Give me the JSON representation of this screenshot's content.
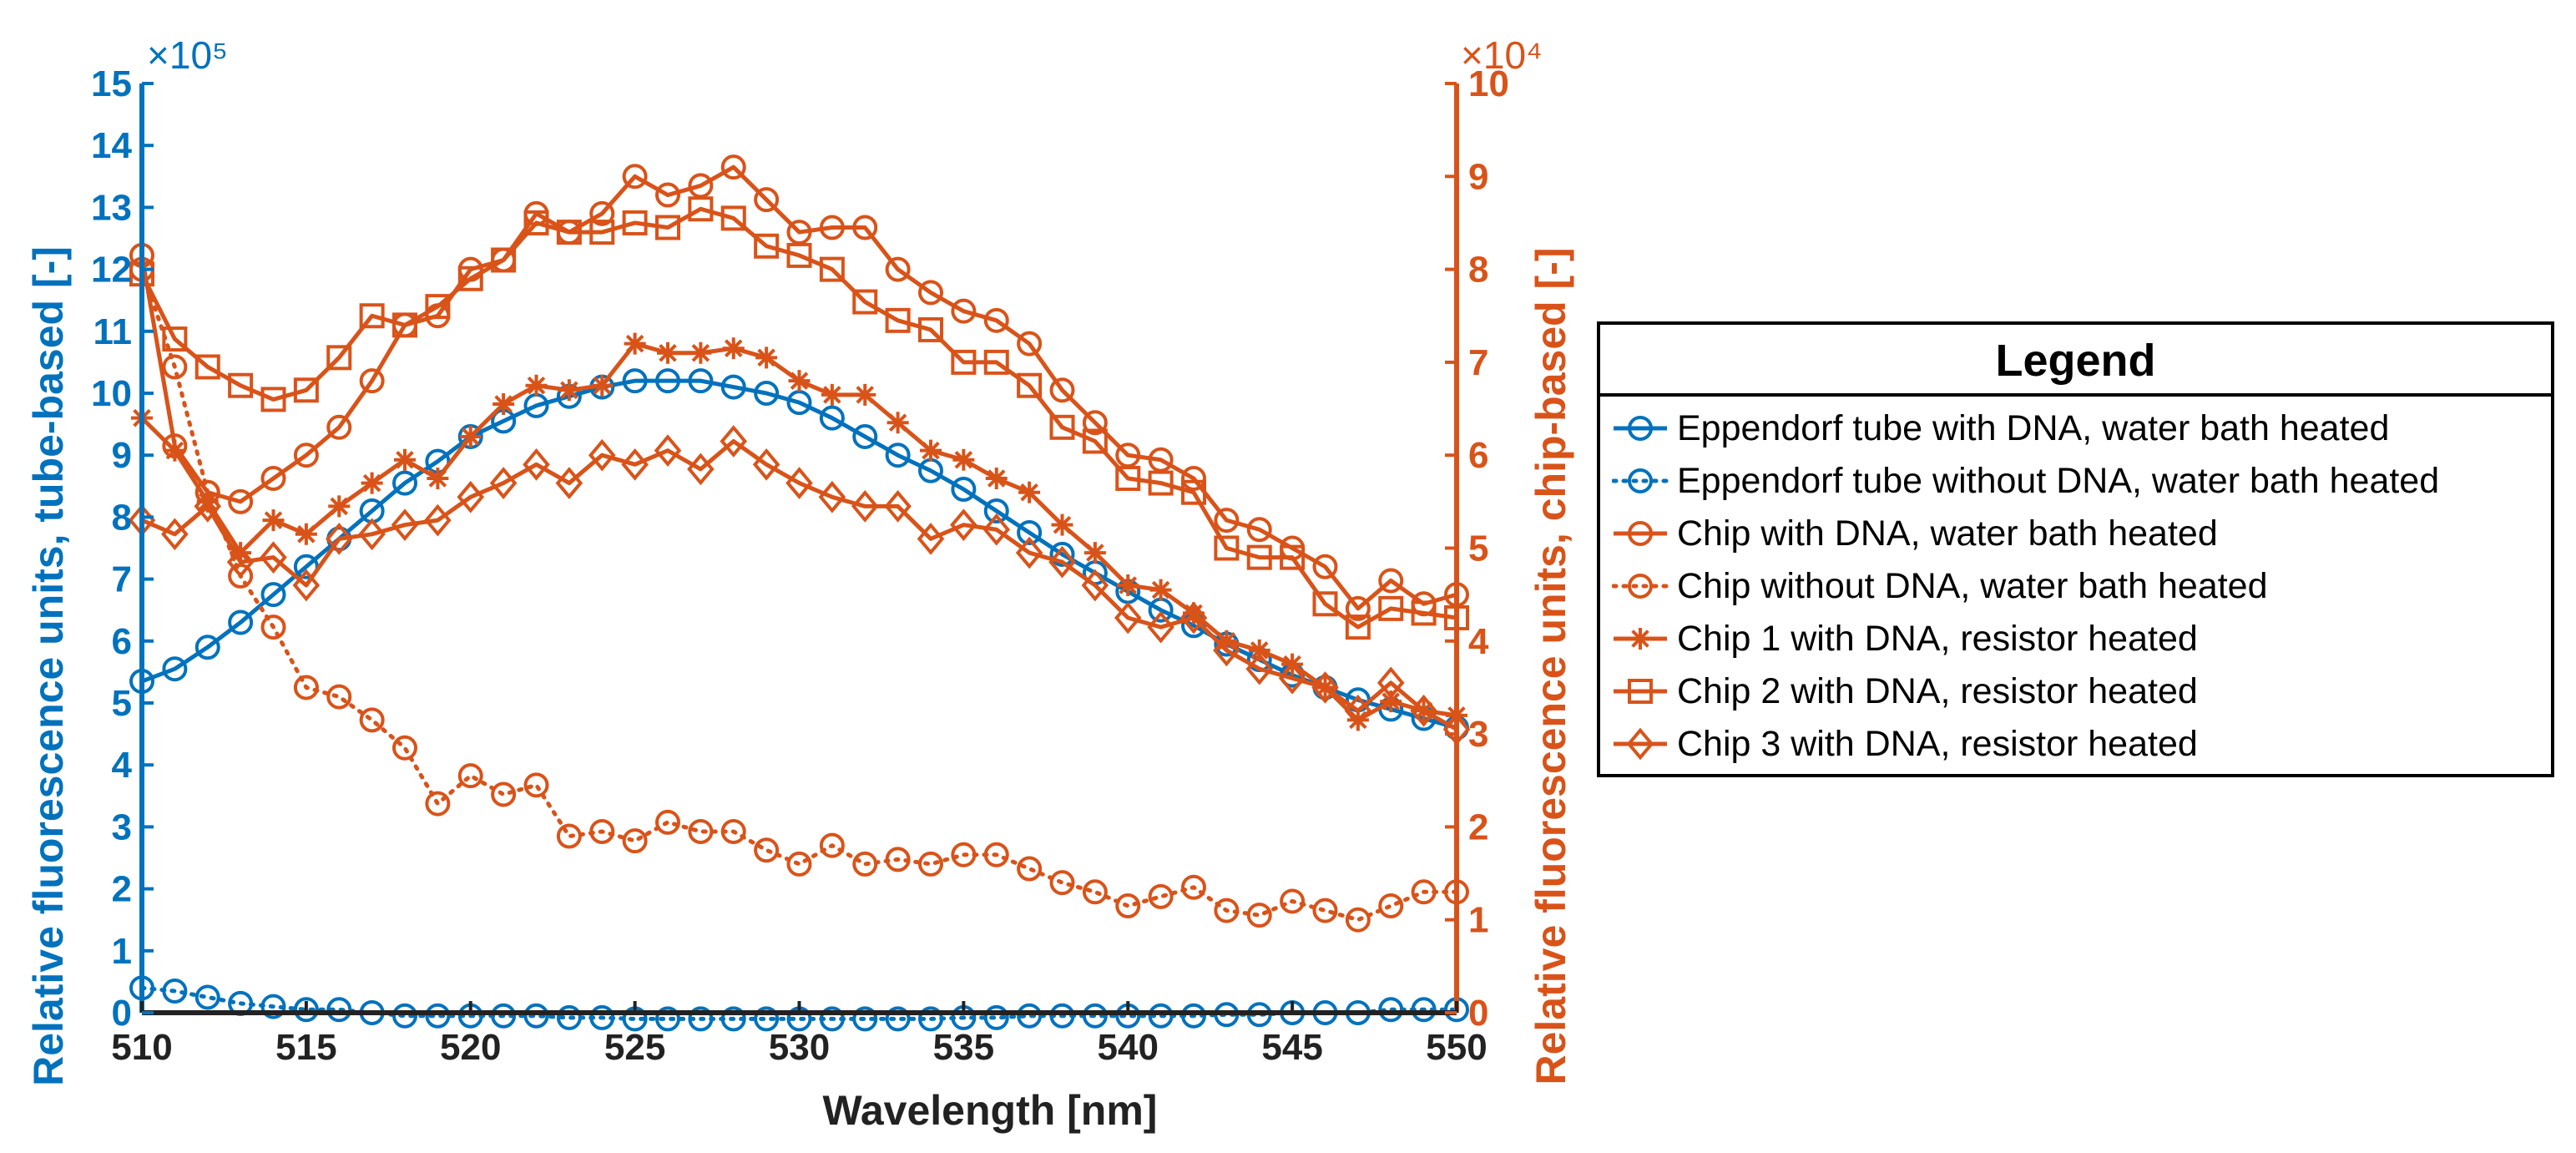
{
  "colors": {
    "blue": "#0072BD",
    "orange": "#D95319",
    "black": "#000000"
  },
  "chart_data": {
    "type": "line",
    "x": [
      510,
      511,
      512,
      513,
      514,
      515,
      516,
      517,
      518,
      519,
      520,
      521,
      522,
      523,
      524,
      525,
      526,
      527,
      528,
      529,
      530,
      531,
      532,
      533,
      534,
      535,
      536,
      537,
      538,
      539,
      540,
      541,
      542,
      543,
      544,
      545,
      546,
      547,
      548,
      549,
      550
    ],
    "xlabel": "Wavelength [nm]",
    "xlim": [
      510,
      550
    ],
    "xticks": [
      510,
      515,
      520,
      525,
      530,
      535,
      540,
      545,
      550
    ],
    "ylabel_left": "Relative fluorescence units, tube-based [-]",
    "ylim_left": [
      0,
      15
    ],
    "yticks_left": [
      0,
      1,
      2,
      3,
      4,
      5,
      6,
      7,
      8,
      9,
      10,
      11,
      12,
      13,
      14,
      15
    ],
    "yexponent_left": "×10⁵",
    "ylabel_right": "Relative fluorescence units, chip-based [-]",
    "ylim_right": [
      0,
      10
    ],
    "yticks_right": [
      0,
      1,
      2,
      3,
      4,
      5,
      6,
      7,
      8,
      9,
      10
    ],
    "yexponent_right": "×10⁴",
    "legend_title": "Legend",
    "legend_position": "outside-right",
    "series": [
      {
        "name": "Eppendorf tube with DNA, water bath heated",
        "axis": "left",
        "color": "#0072BD",
        "marker": "circle",
        "line": "solid",
        "values": [
          5.35,
          5.55,
          5.9,
          6.3,
          6.75,
          7.2,
          7.65,
          8.1,
          8.55,
          8.9,
          9.3,
          9.55,
          9.8,
          9.95,
          10.1,
          10.2,
          10.2,
          10.2,
          10.1,
          10.0,
          9.85,
          9.6,
          9.3,
          9.0,
          8.75,
          8.45,
          8.1,
          7.75,
          7.4,
          7.1,
          6.8,
          6.5,
          6.25,
          5.95,
          5.7,
          5.45,
          5.25,
          5.05,
          4.9,
          4.75,
          4.6
        ]
      },
      {
        "name": "Eppendorf tube without DNA, water bath heated",
        "axis": "left",
        "color": "#0072BD",
        "marker": "circle",
        "line": "dotted",
        "values": [
          0.4,
          0.35,
          0.25,
          0.15,
          0.1,
          0.05,
          0.05,
          0.0,
          -0.05,
          -0.05,
          -0.05,
          -0.05,
          -0.05,
          -0.08,
          -0.08,
          -0.1,
          -0.1,
          -0.1,
          -0.1,
          -0.1,
          -0.1,
          -0.1,
          -0.1,
          -0.1,
          -0.1,
          -0.08,
          -0.08,
          -0.05,
          -0.05,
          -0.05,
          -0.05,
          -0.05,
          -0.05,
          -0.03,
          -0.03,
          0.0,
          0.0,
          0.0,
          0.05,
          0.05,
          0.05
        ]
      },
      {
        "name": "Chip with DNA, water bath heated",
        "axis": "right",
        "color": "#D95319",
        "marker": "circle",
        "line": "solid",
        "values": [
          8.15,
          6.1,
          5.6,
          5.5,
          5.75,
          6.0,
          6.3,
          6.8,
          7.4,
          7.5,
          8.0,
          8.1,
          8.6,
          8.4,
          8.6,
          9.0,
          8.8,
          8.9,
          9.1,
          8.75,
          8.4,
          8.45,
          8.45,
          8.0,
          7.75,
          7.55,
          7.45,
          7.2,
          6.7,
          6.35,
          6.0,
          5.95,
          5.75,
          5.3,
          5.2,
          5.0,
          4.8,
          4.35,
          4.65,
          4.4,
          4.5
        ]
      },
      {
        "name": "Chip without DNA, water bath heated",
        "axis": "right",
        "color": "#D95319",
        "marker": "circle",
        "line": "dotted",
        "values": [
          8.0,
          6.95,
          5.6,
          4.7,
          4.15,
          3.5,
          3.4,
          3.15,
          2.85,
          2.25,
          2.55,
          2.35,
          2.45,
          1.9,
          1.95,
          1.85,
          2.05,
          1.95,
          1.95,
          1.75,
          1.6,
          1.8,
          1.6,
          1.65,
          1.6,
          1.7,
          1.7,
          1.55,
          1.4,
          1.3,
          1.15,
          1.25,
          1.35,
          1.1,
          1.05,
          1.2,
          1.1,
          1.0,
          1.15,
          1.3,
          1.3
        ]
      },
      {
        "name": "Chip 1 with DNA, resistor heated",
        "axis": "right",
        "color": "#D95319",
        "marker": "asterisk",
        "line": "solid",
        "values": [
          6.4,
          6.05,
          5.5,
          4.95,
          5.3,
          5.15,
          5.45,
          5.7,
          5.95,
          5.75,
          6.2,
          6.55,
          6.75,
          6.7,
          6.75,
          7.2,
          7.1,
          7.1,
          7.15,
          7.05,
          6.8,
          6.65,
          6.65,
          6.35,
          6.05,
          5.95,
          5.75,
          5.6,
          5.25,
          4.95,
          4.6,
          4.55,
          4.3,
          4.0,
          3.9,
          3.75,
          3.5,
          3.15,
          3.35,
          3.25,
          3.2
        ]
      },
      {
        "name": "Chip 2 with DNA, resistor heated",
        "axis": "right",
        "color": "#D95319",
        "marker": "square",
        "line": "solid",
        "values": [
          7.95,
          7.25,
          6.95,
          6.75,
          6.6,
          6.7,
          7.05,
          7.5,
          7.4,
          7.6,
          7.9,
          8.1,
          8.5,
          8.4,
          8.4,
          8.5,
          8.45,
          8.65,
          8.55,
          8.25,
          8.15,
          8.0,
          7.65,
          7.45,
          7.35,
          7.0,
          7.0,
          6.75,
          6.3,
          6.15,
          5.75,
          5.7,
          5.6,
          5.0,
          4.9,
          4.9,
          4.4,
          4.15,
          4.35,
          4.3,
          4.25
        ]
      },
      {
        "name": "Chip 3 with DNA, resistor heated",
        "axis": "right",
        "color": "#D95319",
        "marker": "diamond",
        "line": "solid",
        "values": [
          5.3,
          5.15,
          5.45,
          4.85,
          4.9,
          4.6,
          5.1,
          5.15,
          5.25,
          5.3,
          5.55,
          5.7,
          5.9,
          5.7,
          6.0,
          5.9,
          6.05,
          5.85,
          6.15,
          5.9,
          5.7,
          5.55,
          5.45,
          5.45,
          5.1,
          5.25,
          5.2,
          4.95,
          4.85,
          4.6,
          4.25,
          4.15,
          4.25,
          3.9,
          3.7,
          3.6,
          3.5,
          3.25,
          3.55,
          3.25,
          3.05
        ]
      }
    ]
  }
}
